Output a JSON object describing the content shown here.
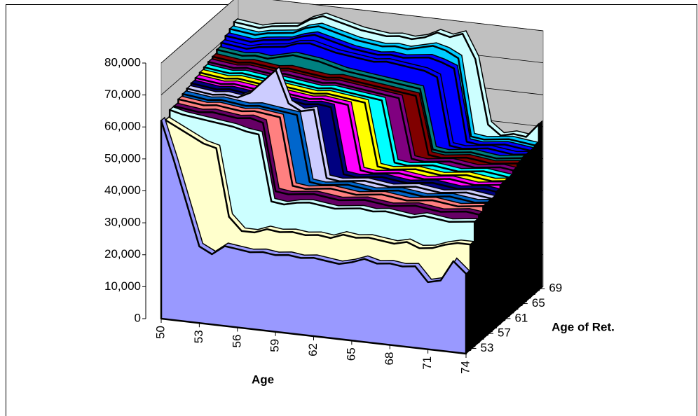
{
  "chart_data": {
    "type": "area3d",
    "x_label": "Age",
    "z_label": "Age of Ret.",
    "x": [
      50,
      51,
      52,
      53,
      54,
      55,
      56,
      57,
      58,
      59,
      60,
      61,
      62,
      63,
      64,
      65,
      66,
      67,
      68,
      69,
      70,
      71,
      72,
      73,
      74
    ],
    "xlim": [
      50,
      74
    ],
    "xticks": [
      50,
      53,
      56,
      59,
      62,
      65,
      68,
      71,
      74
    ],
    "ylim": [
      0,
      80000
    ],
    "yticks": [
      0,
      {
        "value": 10000,
        "label": "10,000"
      },
      {
        "value": 20000,
        "label": "20,000"
      },
      {
        "value": 30000,
        "label": "30,000"
      },
      {
        "value": 40000,
        "label": "40,000"
      },
      {
        "value": 50000,
        "label": "50,000"
      },
      {
        "value": 60000,
        "label": "60,000"
      },
      {
        "value": 70000,
        "label": "70,000"
      },
      {
        "value": 80000,
        "label": "80,000"
      }
    ],
    "grid": true,
    "series": [
      {
        "name": null,
        "color": "#9999ff",
        "values": [
          62000,
          50000,
          37000,
          24000,
          22000,
          25000,
          24500,
          24000,
          24500,
          24000,
          24500,
          24000,
          24500,
          24000,
          23500,
          24500,
          26000,
          25000,
          25500,
          25000,
          25500,
          21000,
          22000,
          28500,
          25000
        ]
      },
      {
        "name": "53",
        "color": "#ffffcc",
        "values": [
          61000,
          59000,
          57000,
          55000,
          54000,
          33000,
          29000,
          29000,
          30500,
          30000,
          30500,
          30000,
          30500,
          30000,
          31500,
          31000,
          31500,
          31000,
          30500,
          31500,
          30000,
          30500,
          32000,
          33000,
          33000
        ]
      },
      {
        "name": null,
        "color": "#ccffff",
        "values": [
          63000,
          62000,
          61500,
          61000,
          60500,
          60000,
          59000,
          58500,
          38000,
          37500,
          38500,
          39000,
          38500,
          38000,
          38500,
          39000,
          38500,
          39000,
          38500,
          38000,
          39000,
          38500,
          38000,
          38500,
          39000
        ]
      },
      {
        "name": null,
        "color": "#660066",
        "values": [
          63000,
          62500,
          62000,
          62500,
          62000,
          61500,
          62000,
          61000,
          40000,
          39500,
          40000,
          40500,
          40000,
          39500,
          40000,
          40500,
          40000,
          39500,
          40000,
          40500,
          40000,
          39500,
          40000,
          40500,
          40000
        ]
      },
      {
        "name": null,
        "color": "#ff8080",
        "values": [
          64000,
          63500,
          63000,
          63500,
          63000,
          62500,
          63000,
          62500,
          62000,
          41000,
          40500,
          41000,
          41500,
          41000,
          40500,
          41000,
          41500,
          41000,
          40500,
          41000,
          41500,
          41000,
          40500,
          41000,
          41500
        ]
      },
      {
        "name": "57",
        "color": "#0066cc",
        "values": [
          64500,
          64000,
          63500,
          64000,
          63500,
          63000,
          63500,
          63000,
          62500,
          62000,
          41500,
          41000,
          41500,
          42000,
          41500,
          41000,
          41500,
          42000,
          41500,
          41000,
          41500,
          42000,
          41500,
          41000,
          41500
        ]
      },
      {
        "name": null,
        "color": "#ccccff",
        "values": [
          65000,
          64500,
          64000,
          64500,
          64000,
          66000,
          70000,
          74000,
          64000,
          62000,
          63000,
          42000,
          41500,
          42000,
          42500,
          42000,
          41500,
          42000,
          42500,
          42000,
          41500,
          42000,
          42500,
          42000,
          41500
        ]
      },
      {
        "name": null,
        "color": "#000080",
        "values": [
          65500,
          65000,
          64500,
          65000,
          64500,
          64000,
          64500,
          64000,
          63500,
          63000,
          63500,
          63000,
          42500,
          42000,
          42500,
          43000,
          42500,
          42000,
          42500,
          43000,
          42500,
          42000,
          42500,
          43000,
          42500
        ]
      },
      {
        "name": null,
        "color": "#ff00ff",
        "values": [
          66000,
          65500,
          65000,
          65500,
          65000,
          64500,
          65000,
          64500,
          64000,
          63500,
          64000,
          63500,
          63000,
          43000,
          42500,
          43000,
          43500,
          43000,
          42500,
          43000,
          43500,
          43000,
          42500,
          43000,
          43500
        ]
      },
      {
        "name": "61",
        "color": "#ffff00",
        "values": [
          66500,
          66000,
          65500,
          66000,
          65500,
          65000,
          65500,
          65000,
          64500,
          64000,
          64500,
          64000,
          63500,
          63000,
          43500,
          43000,
          43500,
          44000,
          43500,
          43000,
          43500,
          44000,
          43500,
          43000,
          43500
        ]
      },
      {
        "name": null,
        "color": "#00ffff",
        "values": [
          67000,
          66500,
          66000,
          66500,
          66000,
          65500,
          66000,
          65500,
          65000,
          64500,
          65000,
          64500,
          64000,
          63500,
          63000,
          44000,
          43500,
          44000,
          44500,
          44000,
          43500,
          44000,
          44500,
          44000,
          43500
        ]
      },
      {
        "name": null,
        "color": "#800080",
        "values": [
          67500,
          67000,
          66500,
          67000,
          66500,
          66000,
          66500,
          66000,
          65500,
          65000,
          65500,
          65000,
          64500,
          64000,
          63500,
          63000,
          44500,
          44000,
          44500,
          45000,
          44500,
          44000,
          44500,
          45000,
          44500
        ]
      },
      {
        "name": null,
        "color": "#800000",
        "values": [
          68000,
          67500,
          67000,
          67500,
          67000,
          66500,
          67000,
          66500,
          66000,
          65500,
          66000,
          65500,
          65000,
          64500,
          64000,
          63500,
          63000,
          45000,
          44500,
          45000,
          45500,
          45000,
          44500,
          45000,
          45500
        ]
      },
      {
        "name": "65",
        "color": "#008080",
        "values": [
          69000,
          68500,
          68000,
          68500,
          68000,
          69000,
          70000,
          69500,
          69000,
          68000,
          67000,
          66500,
          66000,
          65500,
          65000,
          64500,
          64000,
          45500,
          45000,
          45500,
          46000,
          45500,
          45000,
          45500,
          46000
        ]
      },
      {
        "name": null,
        "color": "#0000ff",
        "values": [
          70000,
          69500,
          69000,
          70000,
          70500,
          71000,
          72500,
          73000,
          72000,
          71000,
          70500,
          70000,
          69500,
          70000,
          69500,
          69000,
          68500,
          67000,
          46000,
          45500,
          46000,
          46500,
          46000,
          45500,
          46000
        ]
      },
      {
        "name": null,
        "color": "#0000ff",
        "values": [
          71000,
          70500,
          70000,
          71000,
          71500,
          72000,
          73500,
          74500,
          73500,
          72500,
          71500,
          71000,
          70500,
          71000,
          70500,
          71000,
          71500,
          70500,
          69000,
          46500,
          46000,
          46500,
          47000,
          46500,
          46000
        ]
      },
      {
        "name": null,
        "color": "#00ccff",
        "values": [
          72000,
          71500,
          71000,
          72000,
          72500,
          73000,
          75000,
          76000,
          75000,
          74000,
          73000,
          72500,
          72000,
          72500,
          72000,
          73000,
          74000,
          73000,
          71000,
          47000,
          46500,
          47000,
          47500,
          47000,
          46500
        ]
      },
      {
        "name": "69",
        "color": "#ccffff",
        "values": [
          73000,
          72500,
          72000,
          73000,
          73500,
          74000,
          76500,
          78000,
          77000,
          76000,
          75000,
          74500,
          74000,
          74500,
          74000,
          75000,
          77000,
          76000,
          77500,
          70000,
          50000,
          47000,
          48000,
          47500,
          52000
        ]
      }
    ]
  }
}
